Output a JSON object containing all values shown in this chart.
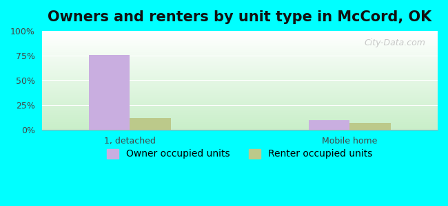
{
  "title": "Owners and renters by unit type in McCord, OK",
  "categories": [
    "1, detached",
    "Mobile home"
  ],
  "owner_values": [
    76,
    10
  ],
  "renter_values": [
    12,
    7
  ],
  "owner_color": "#c9aee0",
  "renter_color": "#bcc98a",
  "bar_width": 0.28,
  "ylim": [
    0,
    100
  ],
  "yticks": [
    0,
    25,
    50,
    75,
    100
  ],
  "ytick_labels": [
    "0%",
    "25%",
    "50%",
    "75%",
    "100%"
  ],
  "background_top": "#e8f5e8",
  "background_bottom": "#d0f0f0",
  "outer_background": "#00ffff",
  "legend_owner": "Owner occupied units",
  "legend_renter": "Renter occupied units",
  "watermark": "City-Data.com",
  "title_fontsize": 15,
  "tick_fontsize": 9,
  "legend_fontsize": 10
}
